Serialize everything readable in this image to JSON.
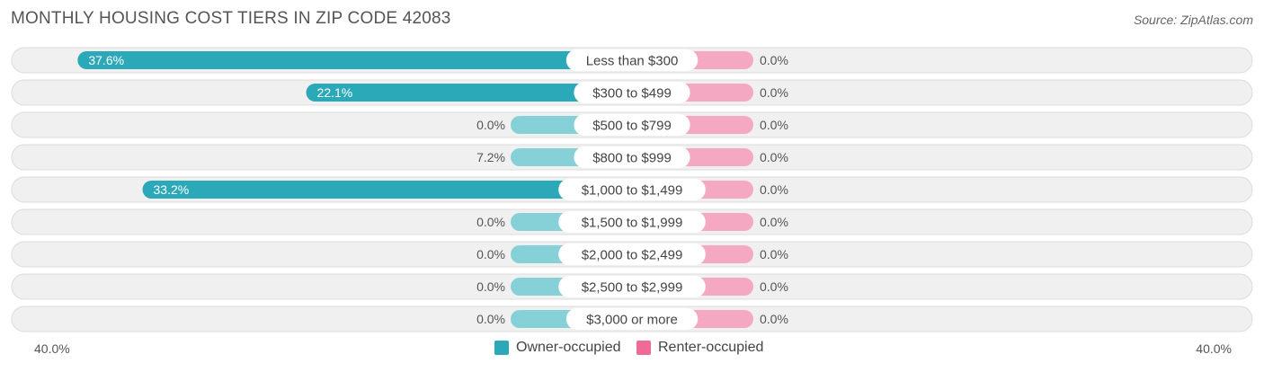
{
  "header": {
    "title": "MONTHLY HOUSING COST TIERS IN ZIP CODE 42083",
    "source": "Source: ZipAtlas.com"
  },
  "colors": {
    "owner_strong": "#2ba9b8",
    "owner_light": "#86d0d8",
    "renter": "#f5a8c2",
    "renter_legend": "#f06a97",
    "row_bg": "#f0f0f0",
    "row_border": "#dcdcdc"
  },
  "chart_data": {
    "type": "bar",
    "orientation": "horizontal-diverging",
    "categories": [
      "Less than $300",
      "$300 to $499",
      "$500 to $799",
      "$800 to $999",
      "$1,000 to $1,499",
      "$1,500 to $1,999",
      "$2,000 to $2,499",
      "$2,500 to $2,999",
      "$3,000 or more"
    ],
    "series": [
      {
        "name": "Owner-occupied",
        "values": [
          37.6,
          22.1,
          0.0,
          7.2,
          33.2,
          0.0,
          0.0,
          0.0,
          0.0
        ],
        "labels": [
          "37.6%",
          "22.1%",
          "0.0%",
          "7.2%",
          "33.2%",
          "0.0%",
          "0.0%",
          "0.0%",
          "0.0%"
        ]
      },
      {
        "name": "Renter-occupied",
        "values": [
          0.0,
          0.0,
          0.0,
          0.0,
          0.0,
          0.0,
          0.0,
          0.0,
          0.0
        ],
        "labels": [
          "0.0%",
          "0.0%",
          "0.0%",
          "0.0%",
          "0.0%",
          "0.0%",
          "0.0%",
          "0.0%",
          "0.0%"
        ]
      }
    ],
    "xlim": [
      -40,
      40
    ],
    "axis_left_label": "40.0%",
    "axis_right_label": "40.0%",
    "legend_position": "bottom-center"
  }
}
